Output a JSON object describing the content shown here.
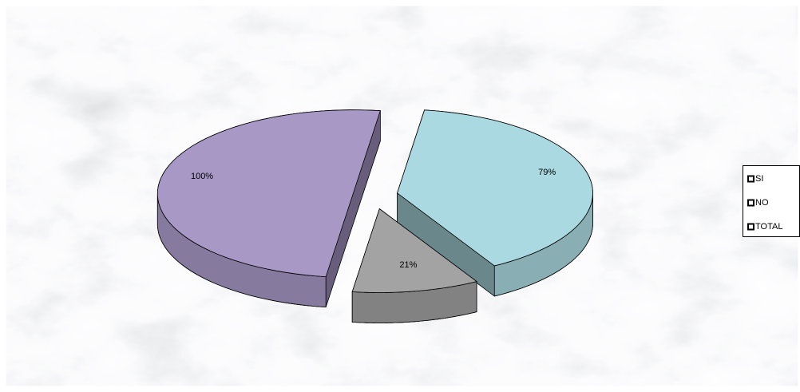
{
  "chart_data": {
    "type": "pie",
    "categories": [
      "SI",
      "NO",
      "TOTAL"
    ],
    "values": [
      79,
      21,
      100
    ],
    "value_labels": [
      "79%",
      "21%",
      "100%"
    ],
    "colors": [
      "#abd9e1",
      "#a3a3a3",
      "#a898c6"
    ],
    "legend": "right"
  }
}
